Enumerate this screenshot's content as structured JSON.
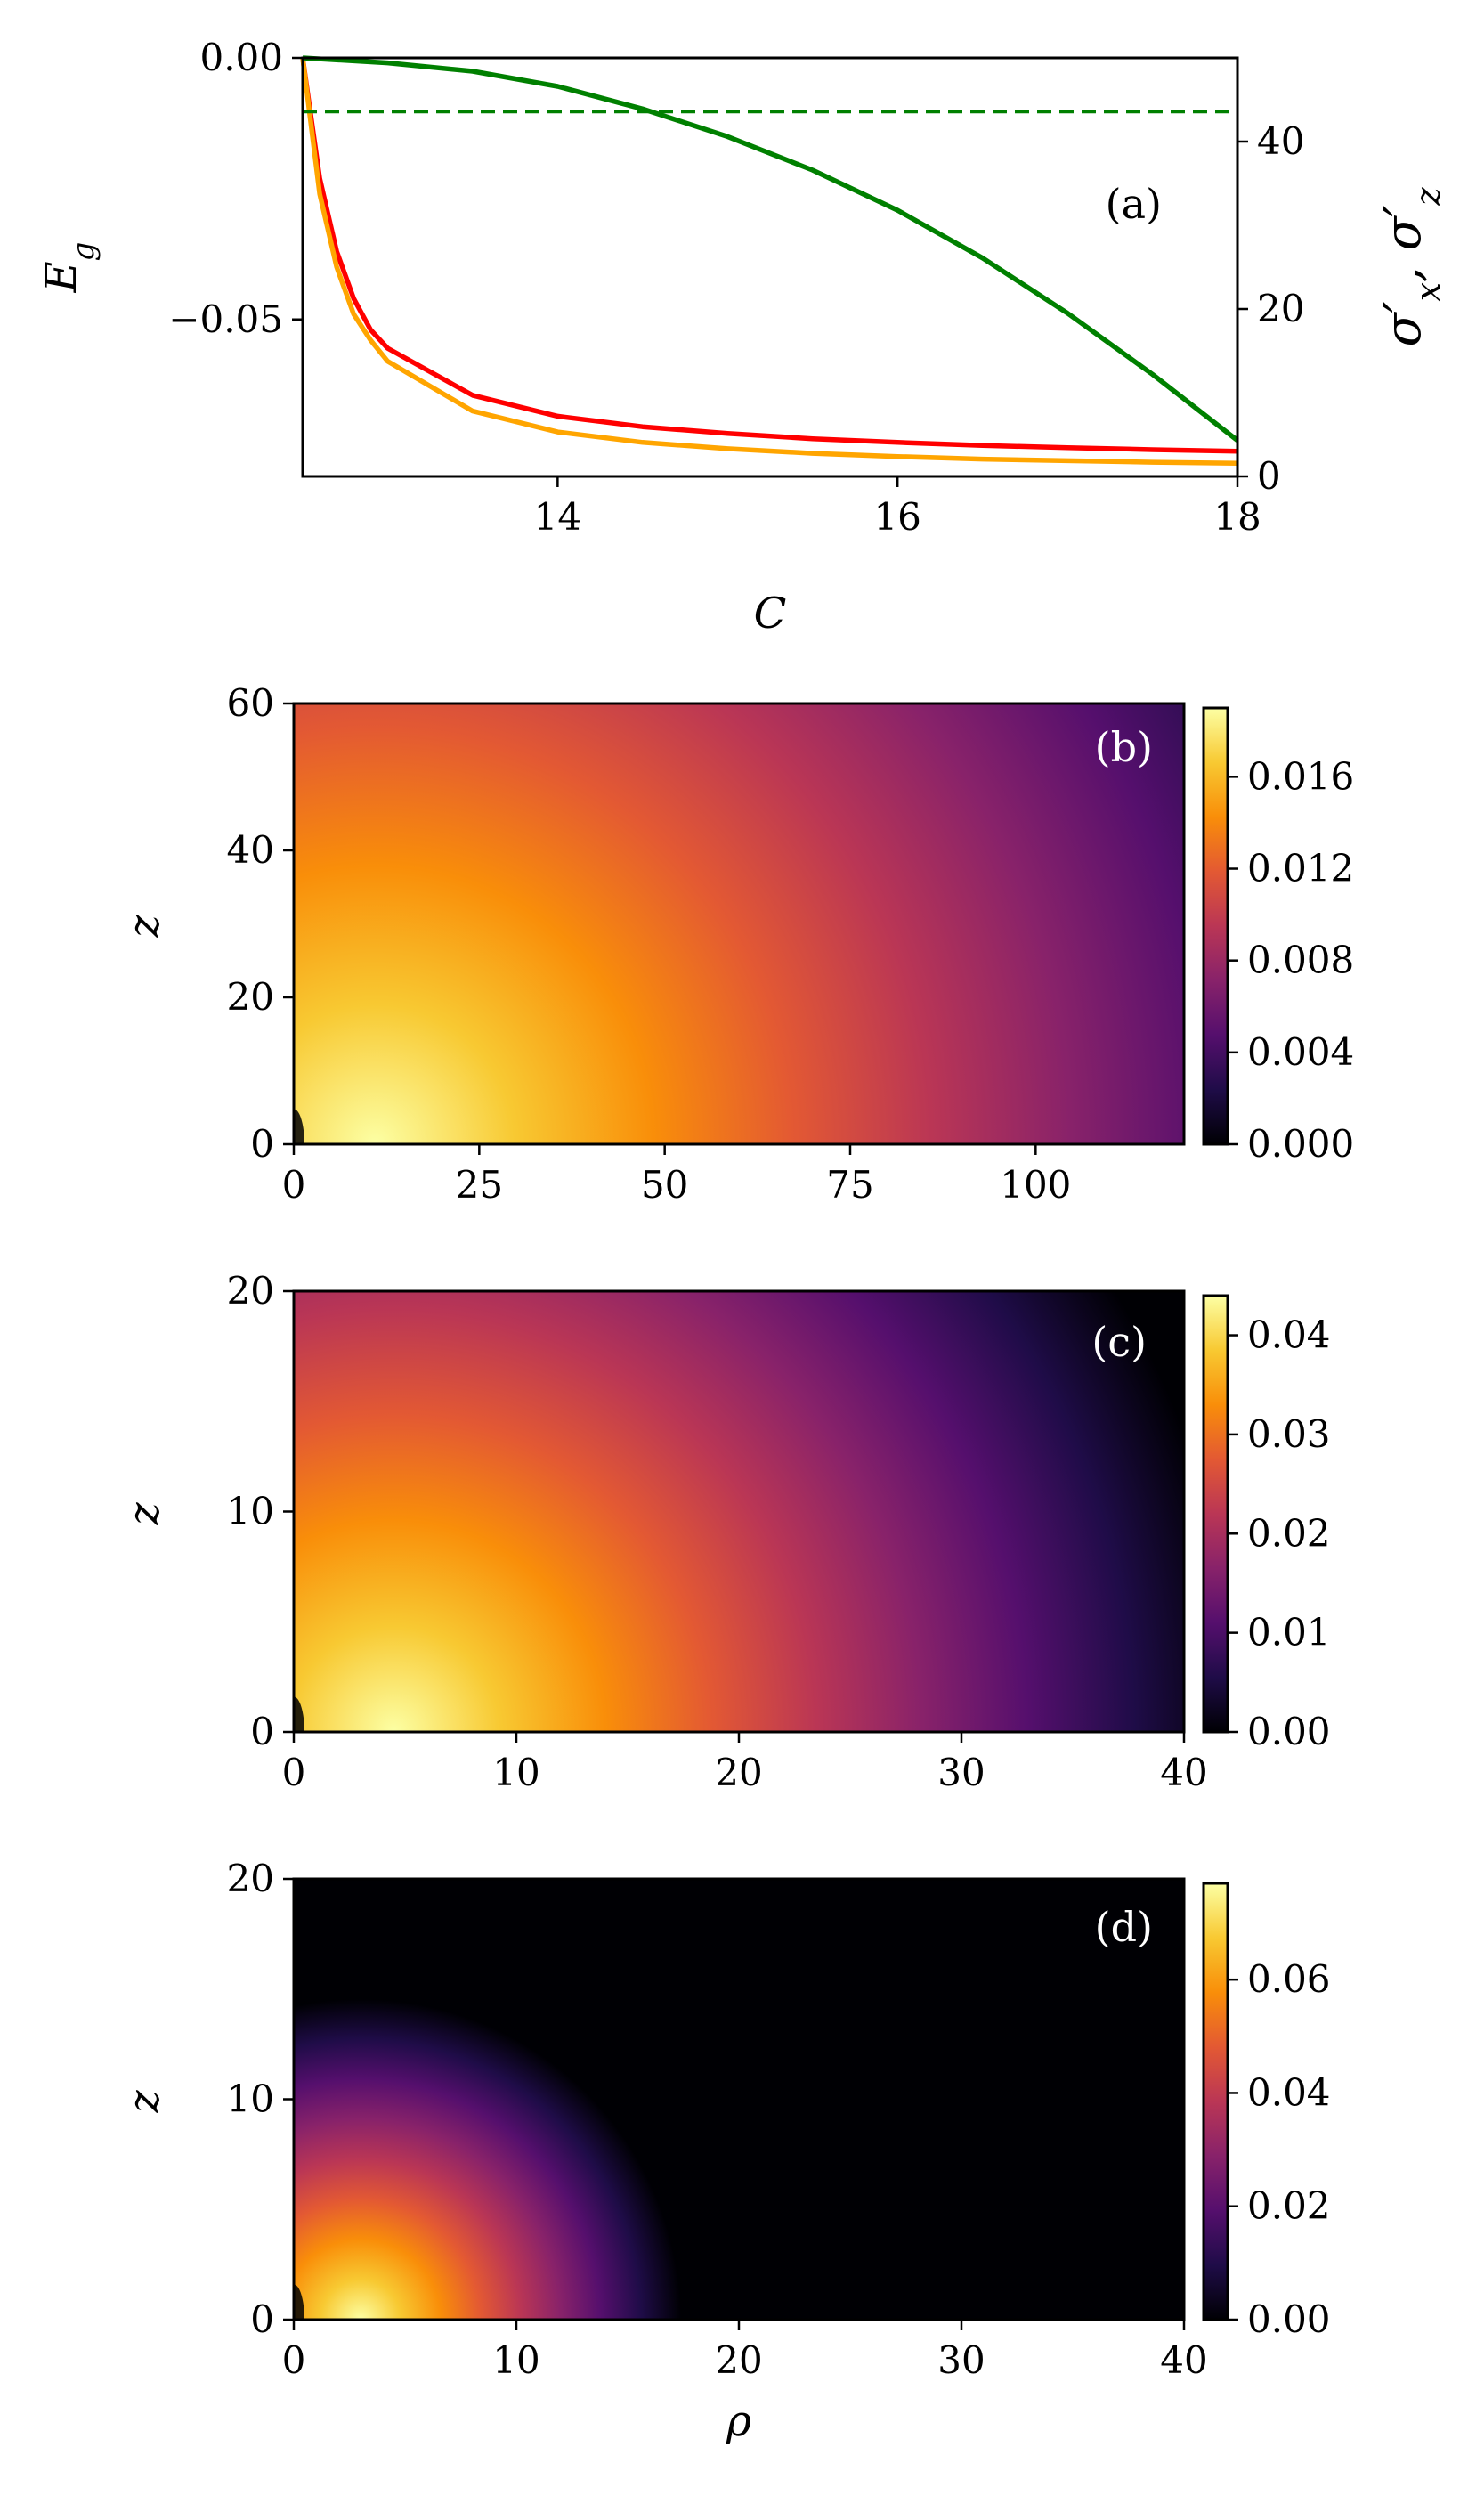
{
  "chart_data": [
    {
      "id": "a",
      "type": "line",
      "panel_label": "(a)",
      "xlabel": "C",
      "ylabel": "E_g",
      "ylabel_right": "σ'_x, σ'_z",
      "xlim": [
        12.5,
        18
      ],
      "ylim": [
        -0.08,
        0.0
      ],
      "ylim_right": [
        0,
        50
      ],
      "xticks": [
        14,
        16,
        18
      ],
      "xtick_labels": [
        "14",
        "16",
        "18"
      ],
      "yticks": [
        0.0,
        -0.05
      ],
      "ytick_labels": [
        "0.00",
        "−0.05"
      ],
      "yticks_right": [
        0,
        20,
        40
      ],
      "ytick_labels_right": [
        "0",
        "20",
        "40"
      ],
      "series": [
        {
          "axis": "left",
          "color": "#ff0000",
          "x": [
            12.5,
            12.6,
            12.7,
            12.8,
            12.9,
            13.0,
            13.5,
            14.0,
            14.5,
            15.0,
            15.5,
            16.0,
            16.5,
            17.0,
            17.5,
            18.0
          ],
          "y": [
            0.0,
            -0.023,
            -0.037,
            -0.046,
            -0.052,
            -0.0555,
            -0.0645,
            -0.0685,
            -0.0705,
            -0.0718,
            -0.0728,
            -0.0735,
            -0.0741,
            -0.0745,
            -0.0749,
            -0.0752
          ]
        },
        {
          "axis": "left",
          "color": "#ffa500",
          "x": [
            12.5,
            12.6,
            12.7,
            12.8,
            12.9,
            13.0,
            13.5,
            14.0,
            14.5,
            15.0,
            15.5,
            16.0,
            16.5,
            17.0,
            17.5,
            18.0
          ],
          "y": [
            0.0,
            -0.026,
            -0.04,
            -0.049,
            -0.054,
            -0.058,
            -0.0675,
            -0.0715,
            -0.0735,
            -0.0747,
            -0.0756,
            -0.0762,
            -0.0767,
            -0.077,
            -0.0773,
            -0.0775
          ]
        },
        {
          "axis": "right",
          "color": "#008000",
          "x": [
            12.5,
            13.0,
            13.5,
            14.0,
            14.5,
            15.0,
            15.5,
            16.0,
            16.5,
            17.0,
            17.5,
            18.0
          ],
          "y": [
            50.0,
            49.4,
            48.4,
            46.6,
            43.9,
            40.6,
            36.6,
            31.8,
            26.1,
            19.5,
            12.2,
            4.3
          ]
        },
        {
          "axis": "right",
          "color": "#008000",
          "dashed": true,
          "x": [
            12.5,
            18.0
          ],
          "y": [
            43.6,
            43.6
          ]
        }
      ]
    },
    {
      "id": "b",
      "type": "heatmap",
      "panel_label": "(b)",
      "xlabel": "",
      "ylabel": "z",
      "xlim": [
        0,
        120
      ],
      "ylim": [
        0,
        60
      ],
      "xticks": [
        0,
        25,
        50,
        75,
        100
      ],
      "yticks": [
        0,
        20,
        40,
        60
      ],
      "colormap": "inferno",
      "vmax": 0.019,
      "peak": [
        11,
        0
      ],
      "colorbar_ticks": [
        0.0,
        0.004,
        0.008,
        0.012,
        0.016
      ],
      "colorbar_labels": [
        "0.000",
        "0.004",
        "0.008",
        "0.012",
        "0.016"
      ]
    },
    {
      "id": "c",
      "type": "heatmap",
      "panel_label": "(c)",
      "xlabel": "",
      "ylabel": "z",
      "xlim": [
        0,
        40
      ],
      "ylim": [
        0,
        20
      ],
      "xticks": [
        0,
        10,
        20,
        30,
        40
      ],
      "yticks": [
        0,
        10,
        20
      ],
      "colormap": "inferno",
      "vmax": 0.044,
      "peak": [
        4.5,
        0
      ],
      "colorbar_ticks": [
        0.0,
        0.01,
        0.02,
        0.03,
        0.04
      ],
      "colorbar_labels": [
        "0.00",
        "0.01",
        "0.02",
        "0.03",
        "0.04"
      ]
    },
    {
      "id": "d",
      "type": "heatmap",
      "panel_label": "(d)",
      "xlabel": "ρ",
      "ylabel": "z",
      "xlim": [
        0,
        40
      ],
      "ylim": [
        0,
        20
      ],
      "xticks": [
        0,
        10,
        20,
        30,
        40
      ],
      "yticks": [
        0,
        10,
        20
      ],
      "colormap": "inferno",
      "vmax": 0.077,
      "peak": [
        3,
        0
      ],
      "colorbar_ticks": [
        0.0,
        0.02,
        0.04,
        0.06
      ],
      "colorbar_labels": [
        "0.00",
        "0.02",
        "0.04",
        "0.06"
      ]
    }
  ]
}
